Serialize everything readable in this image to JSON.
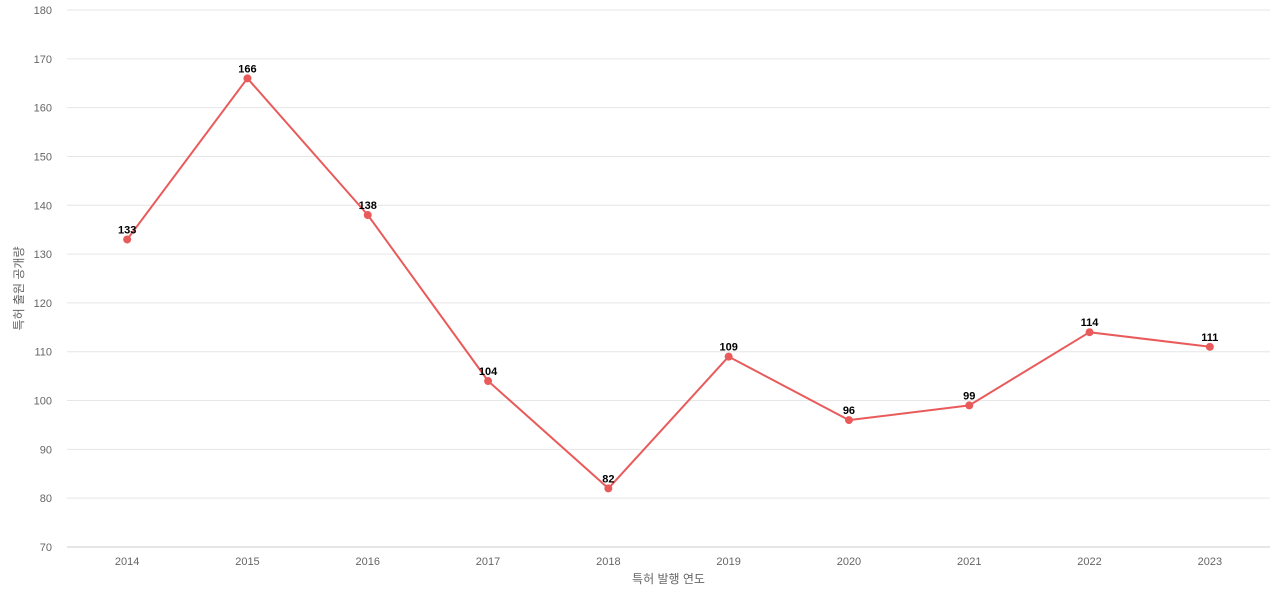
{
  "chart_data": {
    "type": "line",
    "title": "",
    "xlabel": "특허 발행 연도",
    "ylabel": "특허 출원 공개량",
    "categories": [
      "2014",
      "2015",
      "2016",
      "2017",
      "2018",
      "2019",
      "2020",
      "2021",
      "2022",
      "2023"
    ],
    "series": [
      {
        "values": [
          133,
          166,
          138,
          104,
          82,
          109,
          96,
          99,
          114,
          111
        ],
        "color": "#e95b5b"
      }
    ],
    "ylim": [
      70,
      180
    ],
    "yticks": [
      "70",
      "80",
      "90",
      "100",
      "110",
      "120",
      "130",
      "140",
      "150",
      "160",
      "170",
      "180"
    ],
    "grid": true,
    "legend": "none",
    "data_labels": [
      "133",
      "166",
      "138",
      "104",
      "82",
      "109",
      "96",
      "99",
      "114",
      "111"
    ]
  }
}
